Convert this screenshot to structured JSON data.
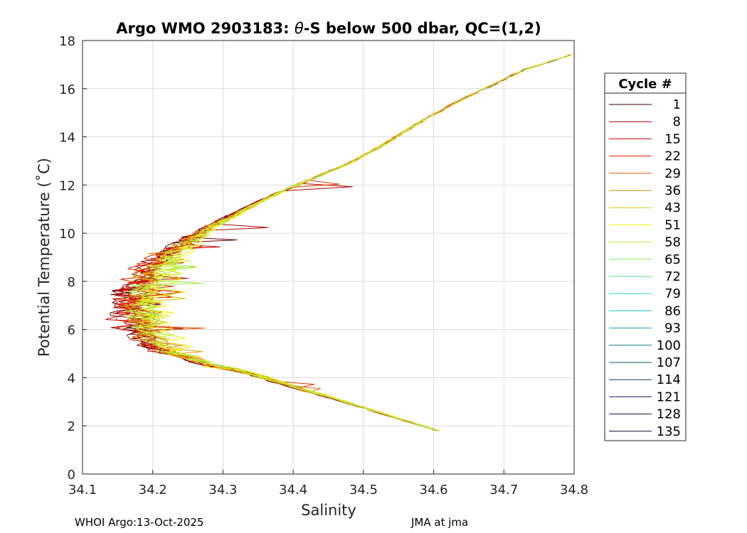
{
  "chart_data": {
    "type": "line",
    "title_prefix": "Argo WMO 2903183: ",
    "title_symbol": "θ",
    "title_suffix": "-S below 500 dbar,  QC=(1,2)",
    "xlabel": "Salinity",
    "ylabel": "Potential Temperature (˚C)",
    "xlim": [
      34.1,
      34.8
    ],
    "ylim": [
      0,
      18
    ],
    "xticks": [
      34.1,
      34.2,
      34.3,
      34.4,
      34.5,
      34.6,
      34.7,
      34.8
    ],
    "xtick_labels": [
      "34.1",
      "34.2",
      "34.3",
      "34.4",
      "34.5",
      "34.6",
      "34.7",
      "34.8"
    ],
    "yticks": [
      0,
      2,
      4,
      6,
      8,
      10,
      12,
      14,
      16,
      18
    ],
    "ytick_labels": [
      "0",
      "2",
      "4",
      "6",
      "8",
      "10",
      "12",
      "14",
      "16",
      "18"
    ],
    "grid": true,
    "legend_title": "Cycle #",
    "legend_position": "outside-right",
    "legend": [
      {
        "label": "1",
        "color": "#3a0000"
      },
      {
        "label": "8",
        "color": "#a10000"
      },
      {
        "label": "15",
        "color": "#cc0000"
      },
      {
        "label": "22",
        "color": "#e31a00"
      },
      {
        "label": "29",
        "color": "#e65a00"
      },
      {
        "label": "36",
        "color": "#d98b00"
      },
      {
        "label": "43",
        "color": "#e2c200"
      },
      {
        "label": "51",
        "color": "#f2f200"
      },
      {
        "label": "58",
        "color": "#bff03a"
      },
      {
        "label": "65",
        "color": "#84ec56"
      },
      {
        "label": "72",
        "color": "#4fe48a"
      },
      {
        "label": "79",
        "color": "#33d7b0"
      },
      {
        "label": "86",
        "color": "#26c6c6"
      },
      {
        "label": "93",
        "color": "#15a3a3"
      },
      {
        "label": "100",
        "color": "#0d7f7f"
      },
      {
        "label": "107",
        "color": "#0a5e6e"
      },
      {
        "label": "114",
        "color": "#123f6b"
      },
      {
        "label": "121",
        "color": "#0b2368"
      },
      {
        "label": "128",
        "color": "#0a1450"
      },
      {
        "label": "135",
        "color": "#0a0a3c"
      }
    ],
    "profile_base": {
      "s": [
        34.605,
        34.55,
        34.5,
        34.45,
        34.4,
        34.36,
        34.33,
        34.3,
        34.27,
        34.24,
        34.21,
        34.19,
        34.175,
        34.168,
        34.165,
        34.168,
        34.175,
        34.19,
        34.21,
        34.24,
        34.28,
        34.33,
        34.38,
        34.43,
        34.48,
        34.53,
        34.58,
        34.63,
        34.68,
        34.73,
        34.8
      ],
      "t": [
        1.8,
        2.3,
        2.75,
        3.2,
        3.6,
        3.95,
        4.2,
        4.4,
        4.6,
        4.85,
        5.1,
        5.5,
        6.0,
        6.5,
        7.0,
        7.5,
        8.0,
        8.5,
        9.0,
        9.6,
        10.3,
        11.0,
        11.7,
        12.3,
        12.9,
        13.7,
        14.6,
        15.4,
        16.1,
        16.8,
        17.45
      ]
    },
    "profiles": [
      {
        "color": "#3a0000",
        "ds": 0.0,
        "seed": 3
      },
      {
        "color": "#6e0000",
        "ds": -0.004,
        "seed": 7
      },
      {
        "color": "#a10000",
        "ds": 0.003,
        "seed": 11
      },
      {
        "color": "#b80000",
        "ds": -0.002,
        "seed": 13
      },
      {
        "color": "#cc0000",
        "ds": 0.006,
        "seed": 17
      },
      {
        "color": "#d60a00",
        "ds": 0.012,
        "seed": 19
      },
      {
        "color": "#e31a00",
        "ds": -0.006,
        "seed": 23
      },
      {
        "color": "#e33a00",
        "ds": 0.018,
        "seed": 29
      },
      {
        "color": "#e65a00",
        "ds": 0.01,
        "seed": 31
      },
      {
        "color": "#e07000",
        "ds": 0.025,
        "seed": 37
      },
      {
        "color": "#d98b00",
        "ds": 0.008,
        "seed": 41
      },
      {
        "color": "#dca600",
        "ds": 0.02,
        "seed": 43
      },
      {
        "color": "#e2c200",
        "ds": 0.03,
        "seed": 47
      },
      {
        "color": "#eddc00",
        "ds": 0.036,
        "seed": 53
      },
      {
        "color": "#f2f200",
        "ds": 0.042,
        "seed": 59
      },
      {
        "color": "#d8f020",
        "ds": 0.034,
        "seed": 61
      },
      {
        "color": "#bff03a",
        "ds": 0.028,
        "seed": 67
      },
      {
        "color": "#9eee4a",
        "ds": 0.022,
        "seed": 71
      }
    ]
  },
  "footer": {
    "left": "WHOI Argo:13-Oct-2025",
    "right": "JMA at jma"
  }
}
